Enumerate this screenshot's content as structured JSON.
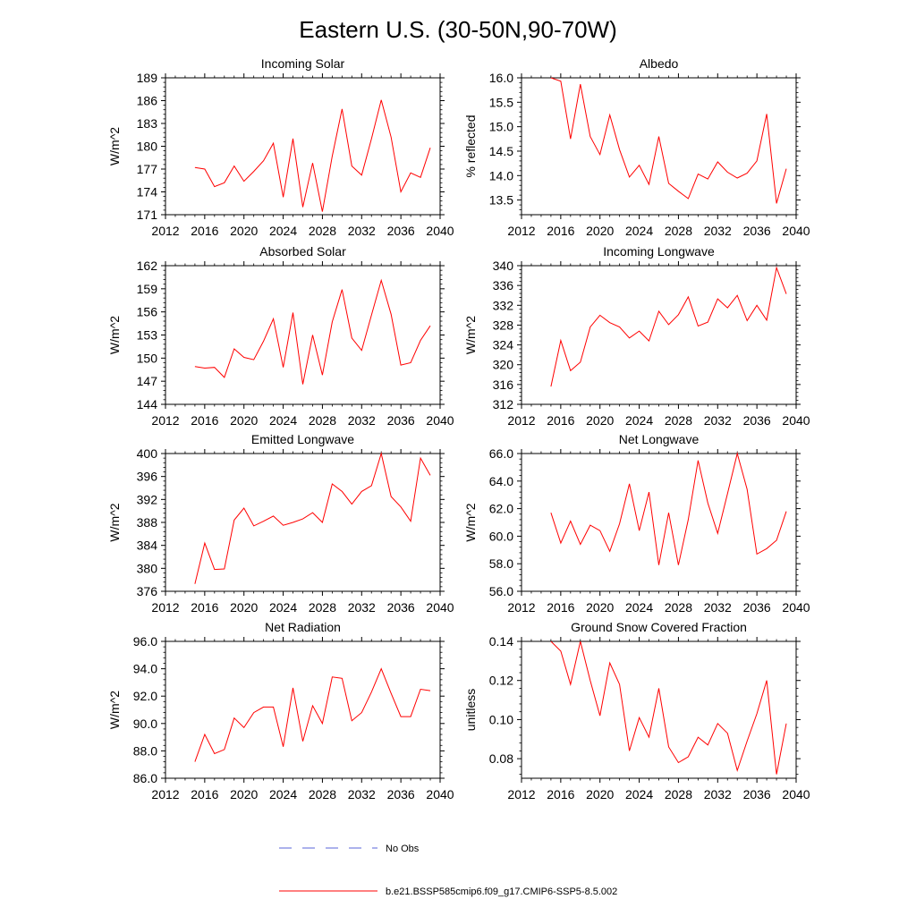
{
  "title": "Eastern U.S. (30-50N,90-70W)",
  "colors": {
    "model": "#ff0000",
    "obs": "#2233cc",
    "axis": "#000000"
  },
  "legend": {
    "obs_label": "No Obs",
    "model_label": "b.e21.BSSP585cmip6.f09_g17.CMIP6-SSP5-8.5.002"
  },
  "chart_data": [
    {
      "type": "line",
      "title": "Incoming Solar",
      "ylabel": "W/m^2",
      "xlim": [
        2012,
        2040
      ],
      "xticks": [
        2012,
        2016,
        2020,
        2024,
        2028,
        2032,
        2036,
        2040
      ],
      "ylim": [
        171,
        189
      ],
      "yticks": [
        171,
        174,
        177,
        180,
        183,
        186,
        189
      ],
      "ytick_decimals": 0,
      "x": [
        2015,
        2016,
        2017,
        2018,
        2019,
        2020,
        2021,
        2022,
        2023,
        2024,
        2025,
        2026,
        2027,
        2028,
        2029,
        2030,
        2031,
        2032,
        2033,
        2034,
        2035,
        2036,
        2037,
        2038,
        2039
      ],
      "y": [
        177.2,
        177.0,
        174.7,
        175.2,
        177.4,
        175.4,
        176.7,
        178.1,
        180.4,
        173.3,
        181.0,
        172.0,
        177.8,
        171.4,
        178.7,
        184.9,
        177.4,
        176.2,
        181.0,
        186.1,
        181.2,
        174.0,
        176.5,
        175.9,
        179.8
      ]
    },
    {
      "type": "line",
      "title": "Albedo",
      "ylabel": "% reflected",
      "xlim": [
        2012,
        2040
      ],
      "xticks": [
        2012,
        2016,
        2020,
        2024,
        2028,
        2032,
        2036,
        2040
      ],
      "ylim": [
        13.2,
        16.0
      ],
      "yticks": [
        13.5,
        14.0,
        14.5,
        15.0,
        15.5,
        16.0
      ],
      "ytick_decimals": 1,
      "x": [
        2015,
        2016,
        2017,
        2018,
        2019,
        2020,
        2021,
        2022,
        2023,
        2024,
        2025,
        2026,
        2027,
        2028,
        2029,
        2030,
        2031,
        2032,
        2033,
        2034,
        2035,
        2036,
        2037,
        2038,
        2039
      ],
      "y": [
        16.0,
        15.93,
        14.75,
        15.87,
        14.8,
        14.43,
        15.24,
        14.53,
        13.97,
        14.21,
        13.82,
        14.8,
        13.84,
        13.68,
        13.53,
        14.03,
        13.93,
        14.28,
        14.07,
        13.95,
        14.05,
        14.3,
        15.26,
        13.43,
        14.14
      ]
    },
    {
      "type": "line",
      "title": "Absorbed Solar",
      "ylabel": "W/m^2",
      "xlim": [
        2012,
        2040
      ],
      "xticks": [
        2012,
        2016,
        2020,
        2024,
        2028,
        2032,
        2036,
        2040
      ],
      "ylim": [
        144,
        162
      ],
      "yticks": [
        144,
        147,
        150,
        153,
        156,
        159,
        162
      ],
      "ytick_decimals": 0,
      "x": [
        2015,
        2016,
        2017,
        2018,
        2019,
        2020,
        2021,
        2022,
        2023,
        2024,
        2025,
        2026,
        2027,
        2028,
        2029,
        2030,
        2031,
        2032,
        2033,
        2034,
        2035,
        2036,
        2037,
        2038,
        2039
      ],
      "y": [
        148.9,
        148.7,
        148.8,
        147.5,
        151.2,
        150.1,
        149.8,
        152.2,
        155.1,
        148.8,
        155.9,
        146.6,
        153.0,
        147.8,
        154.7,
        158.9,
        152.6,
        151.0,
        155.6,
        160.1,
        155.7,
        149.1,
        149.4,
        152.3,
        154.2
      ]
    },
    {
      "type": "line",
      "title": "Incoming Longwave",
      "ylabel": "W/m^2",
      "xlim": [
        2012,
        2040
      ],
      "xticks": [
        2012,
        2016,
        2020,
        2024,
        2028,
        2032,
        2036,
        2040
      ],
      "ylim": [
        312,
        340
      ],
      "yticks": [
        312,
        316,
        320,
        324,
        328,
        332,
        336,
        340
      ],
      "ytick_decimals": 0,
      "x": [
        2015,
        2016,
        2017,
        2018,
        2019,
        2020,
        2021,
        2022,
        2023,
        2024,
        2025,
        2026,
        2027,
        2028,
        2029,
        2030,
        2031,
        2032,
        2033,
        2034,
        2035,
        2036,
        2037,
        2038,
        2039
      ],
      "y": [
        315.6,
        324.9,
        318.8,
        320.5,
        327.6,
        330.0,
        328.5,
        327.6,
        325.4,
        326.8,
        324.8,
        330.8,
        328.1,
        330.1,
        333.7,
        327.8,
        328.6,
        333.3,
        331.5,
        334.0,
        328.9,
        332.0,
        329.0,
        339.6,
        334.3
      ]
    },
    {
      "type": "line",
      "title": "Emitted Longwave",
      "ylabel": "W/m^2",
      "xlim": [
        2012,
        2040
      ],
      "xticks": [
        2012,
        2016,
        2020,
        2024,
        2028,
        2032,
        2036,
        2040
      ],
      "ylim": [
        376,
        400
      ],
      "yticks": [
        376,
        380,
        384,
        388,
        392,
        396,
        400
      ],
      "ytick_decimals": 0,
      "x": [
        2015,
        2016,
        2017,
        2018,
        2019,
        2020,
        2021,
        2022,
        2023,
        2024,
        2025,
        2026,
        2027,
        2028,
        2029,
        2030,
        2031,
        2032,
        2033,
        2034,
        2035,
        2036,
        2037,
        2038,
        2039
      ],
      "y": [
        377.3,
        384.4,
        379.8,
        379.9,
        388.4,
        390.5,
        387.4,
        388.2,
        389.1,
        387.5,
        388.0,
        388.6,
        389.7,
        388.0,
        394.7,
        393.4,
        391.2,
        393.4,
        394.4,
        400.0,
        392.5,
        390.7,
        388.2,
        399.2,
        396.2
      ]
    },
    {
      "type": "line",
      "title": "Net Longwave",
      "ylabel": "W/m^2",
      "xlim": [
        2012,
        2040
      ],
      "xticks": [
        2012,
        2016,
        2020,
        2024,
        2028,
        2032,
        2036,
        2040
      ],
      "ylim": [
        56,
        66
      ],
      "yticks": [
        56.0,
        58.0,
        60.0,
        62.0,
        64.0,
        66.0
      ],
      "ytick_decimals": 1,
      "x": [
        2015,
        2016,
        2017,
        2018,
        2019,
        2020,
        2021,
        2022,
        2023,
        2024,
        2025,
        2026,
        2027,
        2028,
        2029,
        2030,
        2031,
        2032,
        2033,
        2034,
        2035,
        2036,
        2037,
        2038,
        2039
      ],
      "y": [
        61.7,
        59.5,
        61.1,
        59.4,
        60.8,
        60.4,
        58.9,
        60.9,
        63.8,
        60.4,
        63.2,
        57.9,
        61.7,
        57.9,
        61.2,
        65.5,
        62.4,
        60.2,
        63.1,
        66.0,
        63.4,
        58.7,
        59.1,
        59.7,
        61.8
      ]
    },
    {
      "type": "line",
      "title": "Net Radiation",
      "ylabel": "W/m^2",
      "xlim": [
        2012,
        2040
      ],
      "xticks": [
        2012,
        2016,
        2020,
        2024,
        2028,
        2032,
        2036,
        2040
      ],
      "ylim": [
        86,
        96
      ],
      "yticks": [
        86.0,
        88.0,
        90.0,
        92.0,
        94.0,
        96.0
      ],
      "ytick_decimals": 1,
      "x": [
        2015,
        2016,
        2017,
        2018,
        2019,
        2020,
        2021,
        2022,
        2023,
        2024,
        2025,
        2026,
        2027,
        2028,
        2029,
        2030,
        2031,
        2032,
        2033,
        2034,
        2035,
        2036,
        2037,
        2038,
        2039
      ],
      "y": [
        87.2,
        89.2,
        87.8,
        88.1,
        90.4,
        89.7,
        90.8,
        91.2,
        91.2,
        88.3,
        92.6,
        88.7,
        91.3,
        90.0,
        93.4,
        93.3,
        90.2,
        90.8,
        92.3,
        94.0,
        92.2,
        90.5,
        90.5,
        92.5,
        92.4
      ]
    },
    {
      "type": "line",
      "title": "Ground Snow Covered Fraction",
      "ylabel": "unitless",
      "xlim": [
        2012,
        2040
      ],
      "xticks": [
        2012,
        2016,
        2020,
        2024,
        2028,
        2032,
        2036,
        2040
      ],
      "ylim": [
        0.07,
        0.14
      ],
      "yticks": [
        0.08,
        0.1,
        0.12,
        0.14
      ],
      "ytick_decimals": 2,
      "x": [
        2015,
        2016,
        2017,
        2018,
        2019,
        2020,
        2021,
        2022,
        2023,
        2024,
        2025,
        2026,
        2027,
        2028,
        2029,
        2030,
        2031,
        2032,
        2033,
        2034,
        2035,
        2036,
        2037,
        2038,
        2039
      ],
      "y": [
        0.14,
        0.135,
        0.118,
        0.14,
        0.12,
        0.102,
        0.129,
        0.118,
        0.084,
        0.101,
        0.091,
        0.116,
        0.086,
        0.078,
        0.081,
        0.091,
        0.087,
        0.098,
        0.093,
        0.074,
        0.089,
        0.103,
        0.12,
        0.072,
        0.098
      ]
    }
  ]
}
